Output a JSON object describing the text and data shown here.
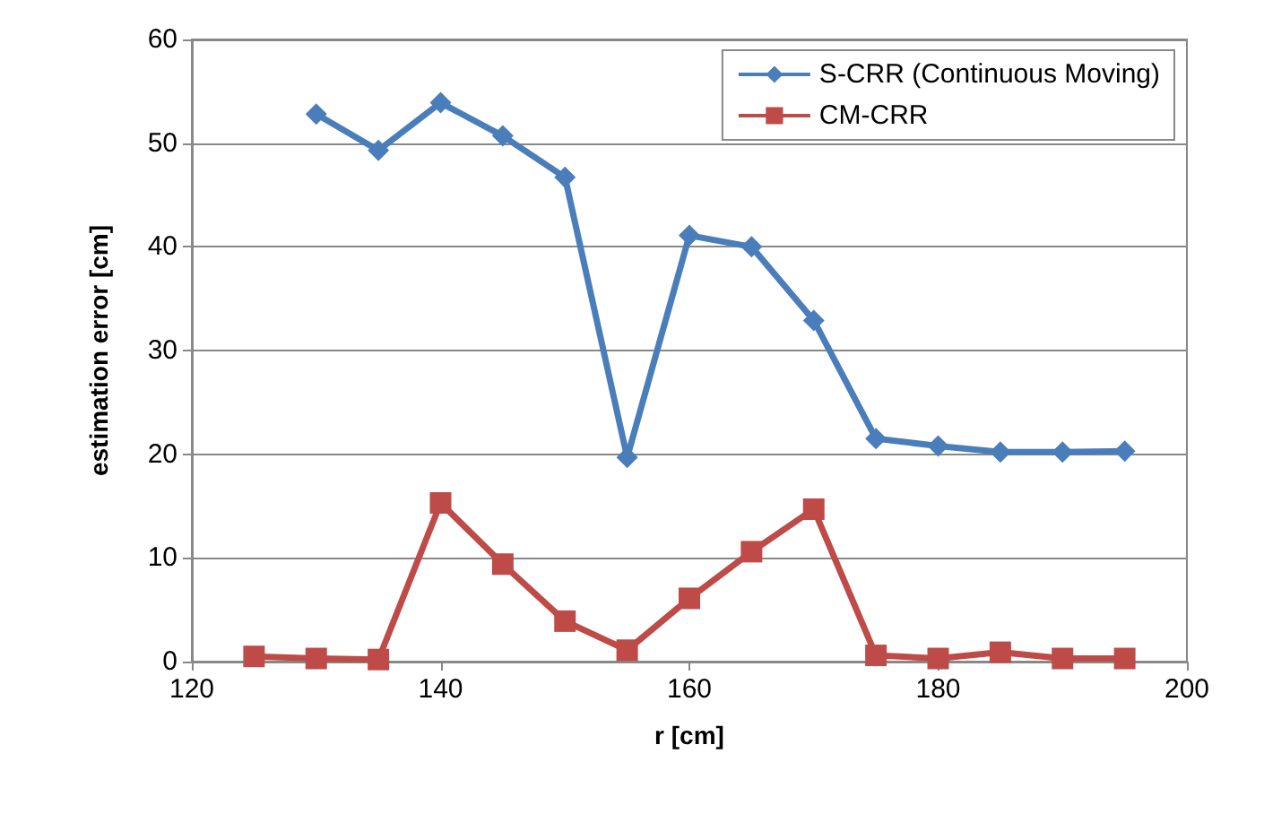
{
  "chart_data": {
    "type": "line",
    "xlabel": "r [cm]",
    "ylabel": "estimation error [cm]",
    "xlim": [
      120,
      200
    ],
    "xticks": [
      120,
      140,
      160,
      180,
      200
    ],
    "ylim": [
      0,
      60
    ],
    "yticks": [
      0,
      10,
      20,
      30,
      40,
      50,
      60
    ],
    "grid": "y",
    "legend": "top right",
    "line_style": "solid",
    "series": [
      {
        "name": "S-CRR (Continuous Moving)",
        "color": "#4a7ebb",
        "marker": "diamond",
        "x": [
          130,
          135,
          140,
          145,
          150,
          155,
          160,
          165,
          170,
          175,
          180,
          185,
          190,
          195
        ],
        "values": [
          52.8,
          49.3,
          53.9,
          50.7,
          46.7,
          19.7,
          41.1,
          40.0,
          32.9,
          21.5,
          20.8,
          20.2,
          20.2,
          20.3
        ]
      },
      {
        "name": "CM-CRR",
        "color": "#be4b48",
        "marker": "square",
        "x": [
          125,
          130,
          135,
          140,
          145,
          150,
          155,
          160,
          165,
          170,
          175,
          180,
          185,
          190,
          195
        ],
        "values": [
          0.5,
          0.3,
          0.2,
          15.3,
          9.4,
          3.9,
          1.1,
          6.1,
          10.6,
          14.7,
          0.6,
          0.3,
          0.9,
          0.3,
          0.3
        ]
      }
    ]
  }
}
